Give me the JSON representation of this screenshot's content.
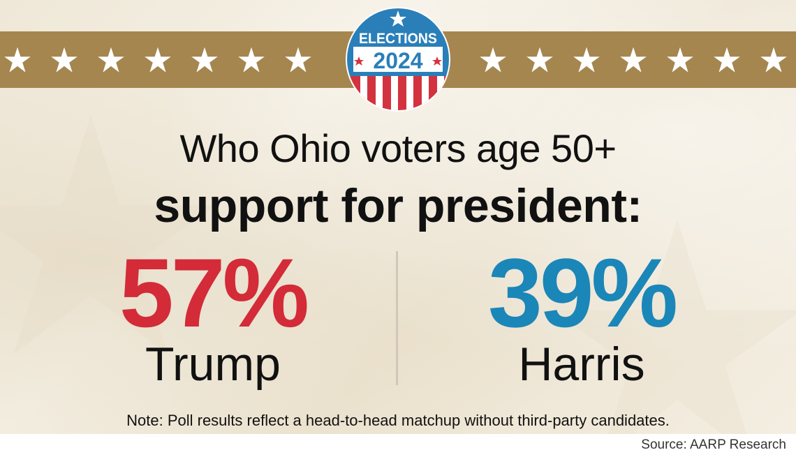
{
  "badge": {
    "line1": "ELECTIONS",
    "line2": "2024",
    "colors": {
      "blue": "#2a7fb8",
      "red": "#d3333f",
      "white": "#ffffff"
    }
  },
  "headline": {
    "line1": "Who Ohio voters age 50+",
    "line2": "support for president:"
  },
  "results": [
    {
      "percent": "57%",
      "candidate": "Trump",
      "color": "#d32b38"
    },
    {
      "percent": "39%",
      "candidate": "Harris",
      "color": "#1b86b8"
    }
  ],
  "note": "Note: Poll results reflect a head-to-head matchup without third-party candidates.",
  "source": "Source: AARP Research",
  "colors": {
    "stripe": "#a5864f",
    "star": "#ffffff",
    "background": "#f2ecdf"
  }
}
